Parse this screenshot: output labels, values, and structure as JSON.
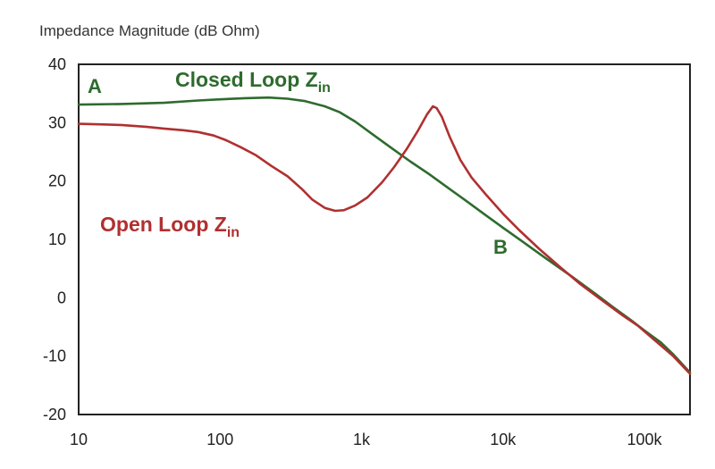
{
  "chart_data": {
    "type": "line",
    "title": "",
    "ylabel": "Impedance Magnitude (dB Ohm)",
    "xlabel": "",
    "xscale": "log",
    "xlim": [
      10,
      210000
    ],
    "ylim": [
      -20,
      40
    ],
    "grid": false,
    "y_ticks": [
      {
        "value": 40,
        "label": "40"
      },
      {
        "value": 30,
        "label": "30"
      },
      {
        "value": 20,
        "label": "20"
      },
      {
        "value": 10,
        "label": "10"
      },
      {
        "value": 0,
        "label": "0"
      },
      {
        "value": -10,
        "label": "-10"
      },
      {
        "value": -20,
        "label": "-20"
      }
    ],
    "x_ticks": [
      {
        "value": 10,
        "label": "10"
      },
      {
        "value": 100,
        "label": "100"
      },
      {
        "value": 1000,
        "label": "1k"
      },
      {
        "value": 10000,
        "label": "10k"
      },
      {
        "value": 100000,
        "label": "100k"
      }
    ],
    "series": [
      {
        "key": "closed",
        "color": "#2e6b2e",
        "points": [
          [
            10,
            33.1
          ],
          [
            20,
            33.2
          ],
          [
            40,
            33.4
          ],
          [
            70,
            33.8
          ],
          [
            100,
            34.0
          ],
          [
            150,
            34.2
          ],
          [
            220,
            34.3
          ],
          [
            300,
            34.1
          ],
          [
            400,
            33.7
          ],
          [
            550,
            32.8
          ],
          [
            700,
            31.8
          ],
          [
            900,
            30.2
          ],
          [
            1200,
            28.0
          ],
          [
            1600,
            25.8
          ],
          [
            2200,
            23.4
          ],
          [
            3000,
            21.2
          ],
          [
            4000,
            19.0
          ],
          [
            5500,
            16.6
          ],
          [
            7500,
            14.2
          ],
          [
            10000,
            12.0
          ],
          [
            14000,
            9.5
          ],
          [
            20000,
            6.8
          ],
          [
            30000,
            3.8
          ],
          [
            45000,
            0.7
          ],
          [
            60000,
            -1.6
          ],
          [
            80000,
            -3.8
          ],
          [
            100000,
            -5.6
          ],
          [
            130000,
            -7.6
          ],
          [
            160000,
            -9.7
          ],
          [
            210000,
            -12.8
          ]
        ]
      },
      {
        "key": "open",
        "color": "#b03030",
        "points": [
          [
            10,
            29.8
          ],
          [
            15,
            29.7
          ],
          [
            20,
            29.6
          ],
          [
            30,
            29.3
          ],
          [
            40,
            29.0
          ],
          [
            55,
            28.7
          ],
          [
            70,
            28.4
          ],
          [
            90,
            27.8
          ],
          [
            110,
            27.0
          ],
          [
            140,
            25.8
          ],
          [
            180,
            24.4
          ],
          [
            230,
            22.6
          ],
          [
            300,
            20.8
          ],
          [
            380,
            18.6
          ],
          [
            450,
            16.8
          ],
          [
            550,
            15.4
          ],
          [
            650,
            14.9
          ],
          [
            750,
            15.0
          ],
          [
            900,
            15.8
          ],
          [
            1100,
            17.2
          ],
          [
            1400,
            19.8
          ],
          [
            1700,
            22.4
          ],
          [
            2100,
            25.6
          ],
          [
            2500,
            28.6
          ],
          [
            2900,
            31.4
          ],
          [
            3200,
            32.8
          ],
          [
            3400,
            32.5
          ],
          [
            3700,
            31.0
          ],
          [
            4200,
            27.6
          ],
          [
            5000,
            23.6
          ],
          [
            6000,
            20.6
          ],
          [
            7500,
            17.8
          ],
          [
            10000,
            14.4
          ],
          [
            13000,
            11.6
          ],
          [
            18000,
            8.4
          ],
          [
            25000,
            5.4
          ],
          [
            35000,
            2.4
          ],
          [
            50000,
            -0.4
          ],
          [
            70000,
            -3.0
          ],
          [
            90000,
            -4.8
          ],
          [
            120000,
            -7.4
          ],
          [
            160000,
            -10.0
          ],
          [
            210000,
            -13.0
          ]
        ]
      }
    ],
    "annotations": [
      {
        "key": "closed_label",
        "text": "Closed Loop Z",
        "sub": "in",
        "color": "#2e6b2e"
      },
      {
        "key": "open_label",
        "text": "Open Loop Z",
        "sub": "in",
        "color": "#b03030"
      },
      {
        "key": "point_a",
        "text": "A",
        "color": "#2e6b2e"
      },
      {
        "key": "point_b",
        "text": "B",
        "color": "#2e6b2e"
      }
    ]
  }
}
